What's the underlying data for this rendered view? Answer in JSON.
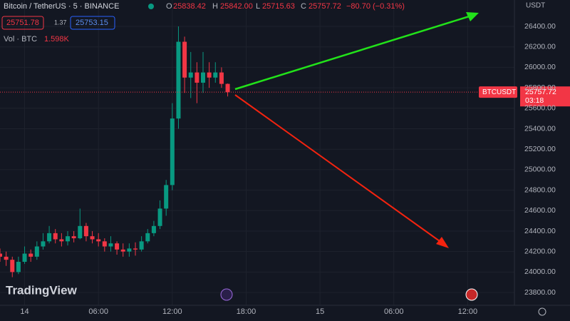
{
  "header": {
    "symbol": "Bitcoin / TetherUS · 5 · BINANCE",
    "o_label": "O",
    "o": "25838.42",
    "h_label": "H",
    "h": "25842.00",
    "l_label": "L",
    "l": "25715.63",
    "c_label": "C",
    "c": "25757.72",
    "change": "−80.70 (−0.31%)",
    "bid": "25751.78",
    "spread": "1.37",
    "ask": "25753.15",
    "vol_label": "Vol · BTC",
    "vol": "1.598K",
    "currency": "USDT",
    "ticker": "BTCUSDT",
    "countdown": "03:18",
    "brand": "TradingView"
  },
  "chart_data": {
    "type": "candlestick",
    "x": [
      -2,
      -1.5,
      -1,
      -0.5,
      0,
      0.5,
      1,
      1.5,
      2,
      2.5,
      3,
      3.5,
      4,
      4.5,
      5,
      5.5,
      6,
      6.5,
      7,
      7.5,
      8,
      8.5,
      9,
      9.5,
      10,
      10.5,
      11,
      11.5,
      12,
      12.5,
      13,
      13.5,
      14,
      14.5,
      15,
      15.5,
      16,
      16.5
    ],
    "open": [
      24180,
      24150,
      24120,
      24000,
      24100,
      24180,
      24150,
      24250,
      24300,
      24380,
      24320,
      24300,
      24350,
      24330,
      24450,
      24350,
      24320,
      24300,
      24250,
      24280,
      24220,
      24200,
      24230,
      24220,
      24300,
      24380,
      24450,
      24620,
      24850,
      25500,
      26250,
      25900,
      25950,
      25850,
      25950,
      25900,
      25950,
      25838.42
    ],
    "high": [
      24230,
      24200,
      24150,
      24150,
      24250,
      24220,
      24300,
      24380,
      24450,
      24420,
      24380,
      24400,
      24400,
      24620,
      24480,
      24400,
      24380,
      24330,
      24350,
      24300,
      24280,
      24280,
      24290,
      24350,
      24420,
      24500,
      24700,
      24900,
      25650,
      26400,
      26300,
      26150,
      26050,
      26150,
      26050,
      26050,
      26000,
      25842
    ],
    "low": [
      24100,
      24060,
      23950,
      23980,
      24080,
      24100,
      24120,
      24220,
      24280,
      24280,
      24250,
      24260,
      24290,
      24320,
      24300,
      24280,
      24250,
      24200,
      24200,
      24170,
      24150,
      24150,
      24160,
      24200,
      24280,
      24350,
      24420,
      24550,
      24800,
      25400,
      25750,
      25700,
      25650,
      25750,
      25800,
      25850,
      25800,
      25715.63
    ],
    "close": [
      24150,
      24120,
      24000,
      24100,
      24180,
      24150,
      24250,
      24300,
      24380,
      24320,
      24300,
      24350,
      24330,
      24450,
      24350,
      24320,
      24300,
      24250,
      24280,
      24220,
      24200,
      24230,
      24220,
      24300,
      24380,
      24450,
      24620,
      24850,
      25500,
      26250,
      25900,
      25950,
      25850,
      25950,
      25900,
      25950,
      25838.42,
      25757.72
    ],
    "up_color": "#089981",
    "down_color": "#f23645",
    "xlim": [
      -2,
      39.8
    ],
    "xticks": [
      {
        "value": 0,
        "label": "14"
      },
      {
        "value": 6,
        "label": "06:00"
      },
      {
        "value": 12,
        "label": "12:00"
      },
      {
        "value": 18,
        "label": "18:00"
      },
      {
        "value": 24,
        "label": "15"
      },
      {
        "value": 30,
        "label": "06:00"
      },
      {
        "value": 36,
        "label": "12:00"
      }
    ],
    "ylim": [
      23675,
      26658
    ],
    "yticks": [
      {
        "value": 23800,
        "label": "23800.00"
      },
      {
        "value": 24000,
        "label": "24000.00"
      },
      {
        "value": 24200,
        "label": "24200.00"
      },
      {
        "value": 24400,
        "label": "24400.00"
      },
      {
        "value": 24600,
        "label": "24600.00"
      },
      {
        "value": 24800,
        "label": "24800.00"
      },
      {
        "value": 25000,
        "label": "25000.00"
      },
      {
        "value": 25200,
        "label": "25200.00"
      },
      {
        "value": 25400,
        "label": "25400.00"
      },
      {
        "value": 25600,
        "label": "25600.00"
      },
      {
        "value": 25800,
        "label": "25800.00"
      },
      {
        "value": 26000,
        "label": "26000.00"
      },
      {
        "value": 26200,
        "label": "26200.00"
      },
      {
        "value": 26400,
        "label": "26400.00"
      }
    ],
    "grid": true
  }
}
